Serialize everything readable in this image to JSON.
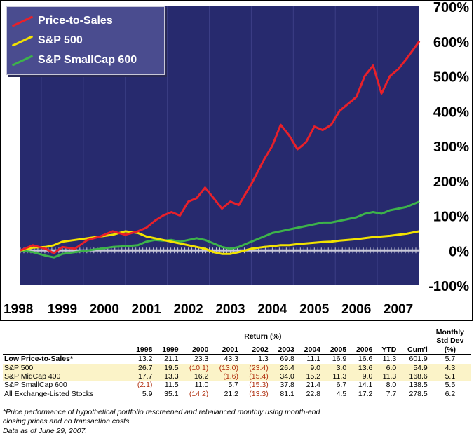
{
  "chart_data": {
    "type": "line",
    "x_labels": [
      "1998",
      "1999",
      "2000",
      "2001",
      "2002",
      "2003",
      "2004",
      "2005",
      "2006",
      "2007"
    ],
    "y_tick_labels": [
      "700%",
      "600%",
      "500%",
      "400%",
      "300%",
      "200%",
      "100%",
      "0%",
      "-100%"
    ],
    "y_ticks": [
      700,
      600,
      500,
      400,
      300,
      200,
      100,
      0,
      -100
    ],
    "ylim": [
      -100,
      700
    ],
    "xlim": [
      1998.0,
      2007.5
    ],
    "grid": "vertical",
    "legend_position": "top-left",
    "colors": {
      "plot_bg": "#272a6e",
      "grid": "#3c3f86",
      "zero_line": "#c8c8d8",
      "price": "#e8202a",
      "sp500": "#f2e300",
      "smallcap": "#3db34a",
      "legend_bg": "#4a4c8f"
    },
    "series": [
      {
        "name": "Price-to-Sales",
        "color": "#e8202a",
        "x": [
          1998.0,
          1998.3,
          1998.6,
          1998.8,
          1999.0,
          1999.3,
          1999.6,
          1999.9,
          2000.2,
          2000.5,
          2000.8,
          2001.0,
          2001.2,
          2001.4,
          2001.6,
          2001.8,
          2002.0,
          2002.2,
          2002.4,
          2002.6,
          2002.8,
          2003.0,
          2003.2,
          2003.5,
          2003.8,
          2004.0,
          2004.2,
          2004.4,
          2004.6,
          2004.8,
          2005.0,
          2005.2,
          2005.4,
          2005.6,
          2005.8,
          2006.0,
          2006.2,
          2006.4,
          2006.6,
          2006.8,
          2007.0,
          2007.2,
          2007.5
        ],
        "y": [
          0,
          15,
          5,
          -8,
          10,
          5,
          30,
          40,
          55,
          45,
          55,
          65,
          85,
          100,
          110,
          100,
          140,
          150,
          180,
          150,
          120,
          140,
          130,
          190,
          260,
          300,
          360,
          330,
          290,
          310,
          355,
          345,
          360,
          400,
          420,
          440,
          500,
          530,
          450,
          500,
          520,
          550,
          600
        ]
      },
      {
        "name": "S&P 500",
        "color": "#f2e300",
        "x": [
          1998.0,
          1998.3,
          1998.6,
          1998.8,
          1999.0,
          1999.3,
          1999.6,
          1999.9,
          2000.2,
          2000.5,
          2000.8,
          2001.0,
          2001.2,
          2001.4,
          2001.6,
          2001.8,
          2002.0,
          2002.2,
          2002.4,
          2002.6,
          2002.8,
          2003.0,
          2003.2,
          2003.5,
          2003.8,
          2004.0,
          2004.2,
          2004.4,
          2004.6,
          2004.8,
          2005.0,
          2005.2,
          2005.4,
          2005.6,
          2005.8,
          2006.0,
          2006.2,
          2006.4,
          2006.6,
          2006.8,
          2007.0,
          2007.2,
          2007.5
        ],
        "y": [
          0,
          8,
          10,
          15,
          25,
          30,
          35,
          40,
          45,
          55,
          50,
          40,
          35,
          30,
          25,
          20,
          15,
          10,
          5,
          -5,
          -10,
          -10,
          -5,
          5,
          10,
          12,
          15,
          15,
          18,
          20,
          22,
          24,
          25,
          28,
          30,
          32,
          35,
          38,
          40,
          42,
          45,
          48,
          55
        ]
      },
      {
        "name": "S&P SmallCap 600",
        "color": "#3db34a",
        "x": [
          1998.0,
          1998.3,
          1998.6,
          1998.8,
          1999.0,
          1999.3,
          1999.6,
          1999.9,
          2000.2,
          2000.5,
          2000.8,
          2001.0,
          2001.2,
          2001.4,
          2001.6,
          2001.8,
          2002.0,
          2002.2,
          2002.4,
          2002.6,
          2002.8,
          2003.0,
          2003.2,
          2003.5,
          2003.8,
          2004.0,
          2004.2,
          2004.4,
          2004.6,
          2004.8,
          2005.0,
          2005.2,
          2005.4,
          2005.6,
          2005.8,
          2006.0,
          2006.2,
          2006.4,
          2006.6,
          2006.8,
          2007.0,
          2007.2,
          2007.5
        ],
        "y": [
          0,
          -5,
          -15,
          -20,
          -10,
          -5,
          0,
          5,
          10,
          12,
          15,
          25,
          30,
          28,
          30,
          25,
          30,
          35,
          30,
          20,
          10,
          5,
          10,
          25,
          40,
          50,
          55,
          60,
          65,
          70,
          75,
          80,
          80,
          85,
          90,
          95,
          105,
          110,
          105,
          115,
          120,
          125,
          140
        ]
      }
    ]
  },
  "table": {
    "return_label": "Return (%)",
    "monthly_label_1": "Monthly",
    "monthly_label_2": "Std Dev",
    "columns": [
      "1998",
      "1999",
      "2000",
      "2001",
      "2002",
      "2003",
      "2004",
      "2005",
      "2006",
      "YTD",
      "Cum'l",
      "(%)"
    ],
    "rows": [
      {
        "name": "Low Price-to-Sales*",
        "values": [
          "13.2",
          "21.1",
          "23.3",
          "43.3",
          "1.3",
          "69.8",
          "11.1",
          "16.9",
          "16.6",
          "11.3",
          "601.9",
          "5.7"
        ]
      },
      {
        "name": "S&P 500",
        "values": [
          "26.7",
          "19.5",
          "(10.1)",
          "(13.0)",
          "(23.4)",
          "26.4",
          "9.0",
          "3.0",
          "13.6",
          "6.0",
          "54.9",
          "4.3"
        ]
      },
      {
        "name": "S&P MidCap 400",
        "values": [
          "17.7",
          "13.3",
          "16.2",
          "(1.6)",
          "(15.4)",
          "34.0",
          "15.2",
          "11.3",
          "9.0",
          "11.3",
          "168.6",
          "5.1"
        ]
      },
      {
        "name": "S&P SmallCap 600",
        "values": [
          "(2.1)",
          "11.5",
          "11.0",
          "5.7",
          "(15.3)",
          "37.8",
          "21.4",
          "6.7",
          "14.1",
          "8.0",
          "138.5",
          "5.5"
        ]
      },
      {
        "name": "All Exchange-Listed Stocks",
        "values": [
          "5.9",
          "35.1",
          "(14.2)",
          "21.2",
          "(13.3)",
          "81.1",
          "22.8",
          "4.5",
          "17.2",
          "7.7",
          "278.5",
          "6.2"
        ]
      }
    ]
  },
  "notes": {
    "line1": "*Price performance of hypothetical portfolio rescreened and rebalanced monthly using month-end",
    "line2": "closing prices and no transaction costs.",
    "line3": "Data as of June 29, 2007."
  }
}
